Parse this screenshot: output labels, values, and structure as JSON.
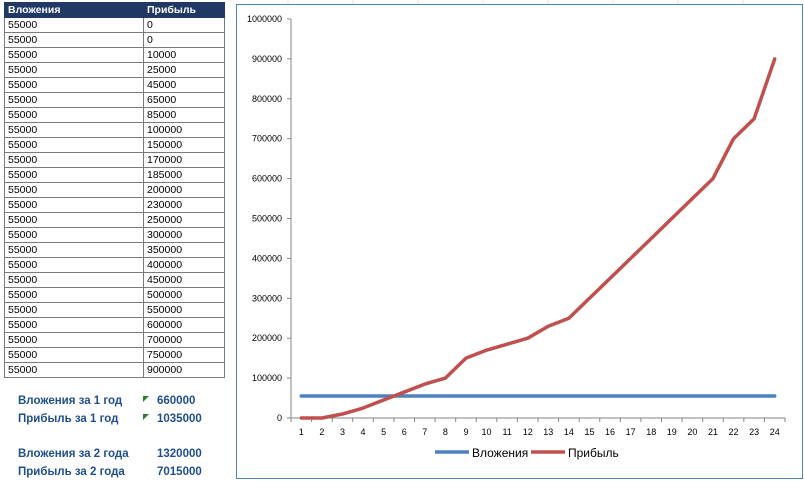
{
  "table": {
    "headers": [
      "Вложения",
      "Прибыль"
    ],
    "rows": [
      [
        "55000",
        "0"
      ],
      [
        "55000",
        "0"
      ],
      [
        "55000",
        "10000"
      ],
      [
        "55000",
        "25000"
      ],
      [
        "55000",
        "45000"
      ],
      [
        "55000",
        "65000"
      ],
      [
        "55000",
        "85000"
      ],
      [
        "55000",
        "100000"
      ],
      [
        "55000",
        "150000"
      ],
      [
        "55000",
        "170000"
      ],
      [
        "55000",
        "185000"
      ],
      [
        "55000",
        "200000"
      ],
      [
        "55000",
        "230000"
      ],
      [
        "55000",
        "250000"
      ],
      [
        "55000",
        "300000"
      ],
      [
        "55000",
        "350000"
      ],
      [
        "55000",
        "400000"
      ],
      [
        "55000",
        "450000"
      ],
      [
        "55000",
        "500000"
      ],
      [
        "55000",
        "550000"
      ],
      [
        "55000",
        "600000"
      ],
      [
        "55000",
        "700000"
      ],
      [
        "55000",
        "750000"
      ],
      [
        "55000",
        "900000"
      ]
    ]
  },
  "summary": {
    "y1_invest_label": "Вложения за 1 год",
    "y1_invest_value": "660000",
    "y1_profit_label": "Прибыль за 1 год",
    "y1_profit_value": "1035000",
    "y2_invest_label": "Вложения за 2 года",
    "y2_invest_value": "1320000",
    "y2_profit_label": "Прибыль за 2 года",
    "y2_profit_value": "7015000"
  },
  "colors": {
    "header_bg": "#1f3864",
    "summary_text": "#1f4e8c",
    "chart_border": "#4f81bd",
    "series_invest": "#4f81bd",
    "series_profit": "#c0504d"
  },
  "chart_data": {
    "type": "line",
    "categories": [
      "1",
      "2",
      "3",
      "4",
      "5",
      "6",
      "7",
      "8",
      "9",
      "10",
      "11",
      "12",
      "13",
      "14",
      "15",
      "16",
      "17",
      "18",
      "19",
      "20",
      "21",
      "22",
      "23",
      "24"
    ],
    "ylim": [
      0,
      1000000
    ],
    "yticks": [
      "0",
      "100000",
      "200000",
      "300000",
      "400000",
      "500000",
      "600000",
      "700000",
      "800000",
      "900000",
      "1000000"
    ],
    "grid": false,
    "legend": "bottom",
    "series": [
      {
        "name": "Вложения",
        "color": "#4f81bd",
        "values": [
          55000,
          55000,
          55000,
          55000,
          55000,
          55000,
          55000,
          55000,
          55000,
          55000,
          55000,
          55000,
          55000,
          55000,
          55000,
          55000,
          55000,
          55000,
          55000,
          55000,
          55000,
          55000,
          55000,
          55000
        ]
      },
      {
        "name": "Прибыль",
        "color": "#c0504d",
        "values": [
          0,
          0,
          10000,
          25000,
          45000,
          65000,
          85000,
          100000,
          150000,
          170000,
          185000,
          200000,
          230000,
          250000,
          300000,
          350000,
          400000,
          450000,
          500000,
          550000,
          600000,
          700000,
          750000,
          900000
        ]
      }
    ]
  }
}
